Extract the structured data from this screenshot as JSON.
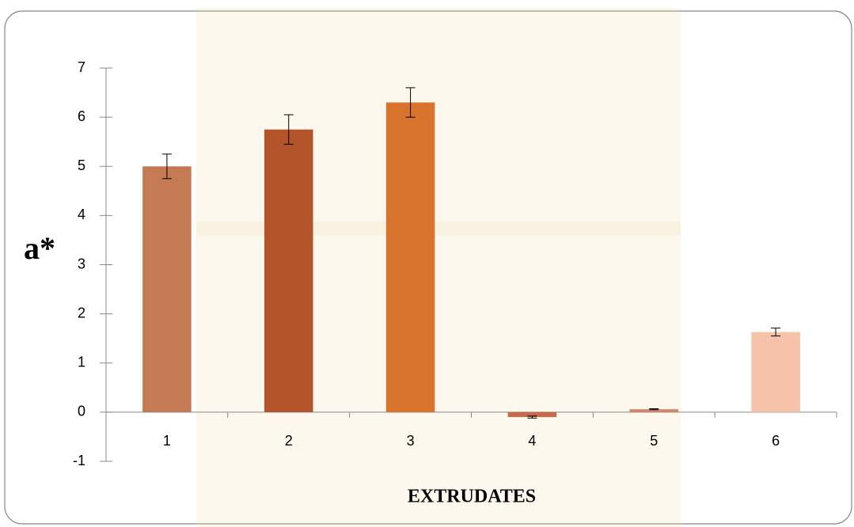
{
  "chart_data": {
    "type": "bar",
    "y_label": "a*",
    "x_label": "EXTRUDATES",
    "categories": [
      "1",
      "2",
      "3",
      "4",
      "5",
      "6"
    ],
    "values": [
      5.0,
      5.75,
      6.3,
      -0.1,
      0.06,
      1.63
    ],
    "errors": [
      0.25,
      0.3,
      0.3,
      0.02,
      0.01,
      0.08
    ],
    "colors": [
      "#c47a52",
      "#b4542a",
      "#d9742e",
      "#c8694a",
      "#d4866a",
      "#f5c2aa"
    ],
    "ylim": [
      -1,
      7
    ],
    "yticks": [
      -1,
      0,
      1,
      2,
      3,
      4,
      5,
      6,
      7
    ],
    "grid": false
  }
}
